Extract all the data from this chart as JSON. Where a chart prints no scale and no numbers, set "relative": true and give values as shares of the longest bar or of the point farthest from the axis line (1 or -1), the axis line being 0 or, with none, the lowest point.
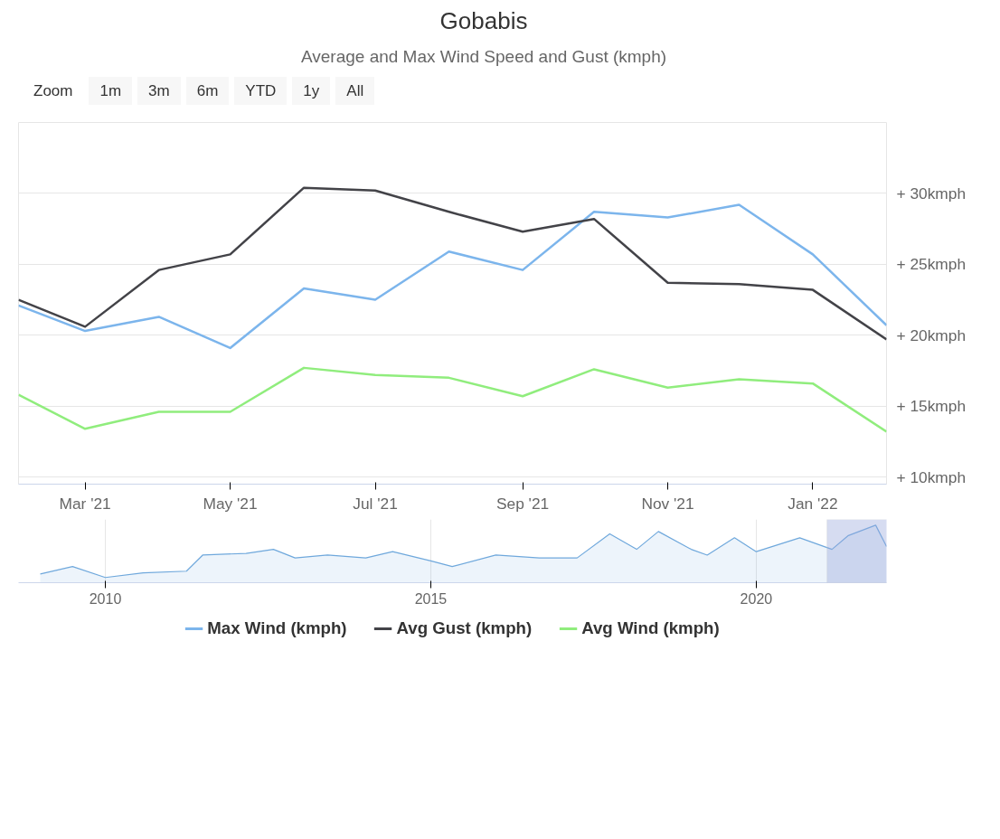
{
  "chart_data": [
    {
      "type": "line",
      "title": "Gobabis",
      "subtitle": "Average and Max Wind Speed and Gust (kmph)",
      "annotations": [
        "Zoom",
        "1m",
        "3m",
        "6m",
        "YTD",
        "1y",
        "All"
      ],
      "x": [
        "2021-02-01",
        "2021-03-01",
        "2021-04-01",
        "2021-05-01",
        "2021-06-01",
        "2021-07-01",
        "2021-08-01",
        "2021-09-01",
        "2021-10-01",
        "2021-11-01",
        "2021-12-01",
        "2022-01-01",
        "2022-02-01"
      ],
      "series": [
        {
          "name": "Max Wind (kmph)",
          "color": "#7cb5ec",
          "values": [
            22.1,
            20.3,
            21.3,
            19.1,
            23.3,
            22.5,
            25.9,
            24.6,
            28.7,
            28.3,
            29.2,
            25.7,
            20.7
          ]
        },
        {
          "name": "Avg Gust (kmph)",
          "color": "#434348",
          "values": [
            22.5,
            20.6,
            24.6,
            25.7,
            30.4,
            30.2,
            28.7,
            27.3,
            28.2,
            23.7,
            23.6,
            23.2,
            19.7
          ]
        },
        {
          "name": "Avg Wind (kmph)",
          "color": "#90ed7d",
          "values": [
            15.8,
            13.4,
            14.6,
            14.6,
            17.7,
            17.2,
            17.0,
            15.7,
            17.6,
            16.3,
            16.9,
            16.6,
            13.2
          ]
        }
      ],
      "xlim": [
        "2021-02-01",
        "2022-02-01"
      ],
      "xticks": [
        {
          "value": "2021-03-01",
          "label": "Mar '21"
        },
        {
          "value": "2021-05-01",
          "label": "May '21"
        },
        {
          "value": "2021-07-01",
          "label": "Jul '21"
        },
        {
          "value": "2021-09-01",
          "label": "Sep '21"
        },
        {
          "value": "2021-11-01",
          "label": "Nov '21"
        },
        {
          "value": "2022-01-01",
          "label": "Jan '22"
        }
      ],
      "ylim": [
        9.5,
        35
      ],
      "yticks": [
        {
          "value": 10,
          "label": "+ 10kmph"
        },
        {
          "value": 15,
          "label": "+ 15kmph"
        },
        {
          "value": 20,
          "label": "+ 20kmph"
        },
        {
          "value": 25,
          "label": "+ 25kmph"
        },
        {
          "value": 30,
          "label": "+ 30kmph"
        }
      ],
      "grid": "y",
      "legend": "bottom",
      "marker": "none",
      "line_style": "solid"
    },
    {
      "type": "area",
      "relative": true,
      "x": [
        "2009-01",
        "2009-07",
        "2010-01",
        "2010-08",
        "2011-04",
        "2011-07",
        "2012-03",
        "2012-08",
        "2012-12",
        "2013-06",
        "2014-01",
        "2014-06",
        "2015-01",
        "2015-05",
        "2016-01",
        "2016-09",
        "2017-04",
        "2017-10",
        "2018-03",
        "2018-07",
        "2019-01",
        "2019-04",
        "2019-09",
        "2020-01",
        "2020-09",
        "2021-03",
        "2021-06",
        "2021-11",
        "2022-01"
      ],
      "series": [
        {
          "color": "#6fa8dc",
          "values": [
            0.15,
            0.28,
            0.09,
            0.17,
            0.2,
            0.48,
            0.51,
            0.58,
            0.43,
            0.48,
            0.43,
            0.54,
            0.38,
            0.28,
            0.48,
            0.43,
            0.43,
            0.85,
            0.58,
            0.89,
            0.58,
            0.48,
            0.78,
            0.54,
            0.78,
            0.58,
            0.82,
            1.0,
            0.63
          ]
        }
      ],
      "xlim": [
        "2008-09",
        "2022-01"
      ],
      "xticks": [
        {
          "value": "2010-01",
          "label": "2010"
        },
        {
          "value": "2015-01",
          "label": "2015"
        },
        {
          "value": "2020-01",
          "label": "2020"
        }
      ],
      "bands": [
        {
          "axis": "x",
          "from": "2021-02-01",
          "to": "2022-02-01",
          "color": "#99a8dd"
        }
      ],
      "grid": "x",
      "tick_labels": "x"
    }
  ]
}
